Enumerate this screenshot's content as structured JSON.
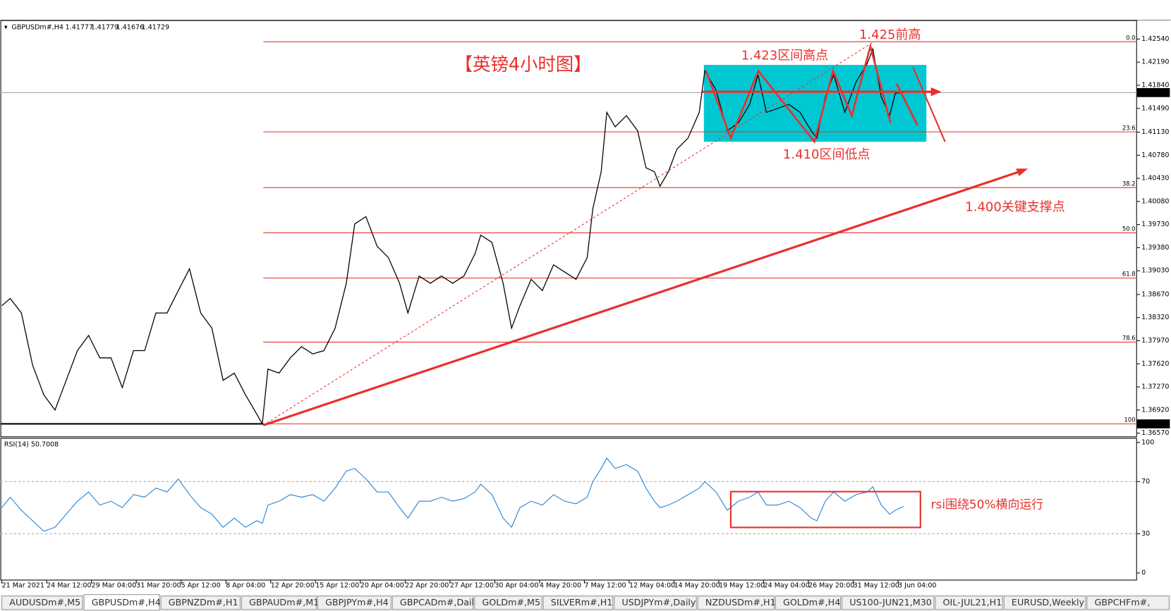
{
  "chart_data": {
    "type": "line",
    "title": "【英镑4小时图】",
    "symbol": "GBPUSDm#,H4",
    "ohlc_labels": [
      "1.41777",
      "1.41779",
      "1.41676",
      "1.41729"
    ],
    "x": [
      0,
      3,
      7,
      11,
      15,
      19,
      23,
      27,
      31,
      35,
      39,
      43,
      47,
      51,
      55,
      59,
      63,
      67,
      71,
      75,
      79,
      83,
      87,
      91,
      93,
      95,
      99,
      103,
      107,
      111,
      115,
      119,
      123,
      126,
      130,
      134,
      138,
      142,
      145,
      149,
      153,
      157,
      161,
      165,
      169,
      171,
      175,
      179,
      182,
      185,
      189,
      193,
      197,
      201,
      205,
      209,
      211,
      214,
      216,
      219,
      223,
      227,
      230,
      233,
      235,
      238,
      241,
      245,
      249,
      251,
      255,
      259,
      263,
      267,
      270,
      273,
      277,
      281,
      285,
      289,
      291,
      294,
      297,
      301,
      305,
      309,
      311,
      314,
      317,
      319,
      322
    ],
    "xlim": [
      -0.5,
      405.3
    ],
    "xticks": [
      {
        "value": 0,
        "label": "21 Mar 2021"
      },
      {
        "value": 16,
        "label": "24 Mar 12:00"
      },
      {
        "value": 32,
        "label": "29 Mar 04:00"
      },
      {
        "value": 48,
        "label": "31 Mar 20:00"
      },
      {
        "value": 64,
        "label": "5 Apr 12:00"
      },
      {
        "value": 80,
        "label": "8 Apr 04:00"
      },
      {
        "value": 96,
        "label": "12 Apr 20:00"
      },
      {
        "value": 112,
        "label": "15 Apr 12:00"
      },
      {
        "value": 128,
        "label": "20 Apr 04:00"
      },
      {
        "value": 144,
        "label": "22 Apr 20:00"
      },
      {
        "value": 160,
        "label": "27 Apr 12:00"
      },
      {
        "value": 176,
        "label": "30 Apr 04:00"
      },
      {
        "value": 192,
        "label": "4 May 20:00"
      },
      {
        "value": 208,
        "label": "7 May 12:00"
      },
      {
        "value": 224,
        "label": "12 May 04:00"
      },
      {
        "value": 240,
        "label": "14 May 20:00"
      },
      {
        "value": 256,
        "label": "19 May 12:00"
      },
      {
        "value": 272,
        "label": "24 May 04:00"
      },
      {
        "value": 288,
        "label": "26 May 20:00"
      },
      {
        "value": 304,
        "label": "31 May 12:00"
      },
      {
        "value": 320,
        "label": "3 Jun 04:00"
      }
    ],
    "ylim": [
      1.3652,
      1.4277
    ],
    "yticks": [
      {
        "value": 1.4254,
        "label": "1.42540"
      },
      {
        "value": 1.4219,
        "label": "1.42190"
      },
      {
        "value": 1.4184,
        "label": "1.41840"
      },
      {
        "value": 1.4149,
        "label": "1.41490"
      },
      {
        "value": 1.4113,
        "label": "1.41130"
      },
      {
        "value": 1.4078,
        "label": "1.40780"
      },
      {
        "value": 1.4043,
        "label": "1.40430"
      },
      {
        "value": 1.4008,
        "label": "1.40080"
      },
      {
        "value": 1.3973,
        "label": "1.39730"
      },
      {
        "value": 1.3938,
        "label": "1.39380"
      },
      {
        "value": 1.3903,
        "label": "1.39030"
      },
      {
        "value": 1.3867,
        "label": "1.38670"
      },
      {
        "value": 1.3832,
        "label": "1.38320"
      },
      {
        "value": 1.3797,
        "label": "1.37970"
      },
      {
        "value": 1.3762,
        "label": "1.37620"
      },
      {
        "value": 1.3727,
        "label": "1.37270"
      },
      {
        "value": 1.3692,
        "label": "1.36920"
      },
      {
        "value": 1.3657,
        "label": "1.36570"
      }
    ],
    "series": [
      {
        "name": "GBPUSDm#,H4",
        "color": "#000000",
        "values": [
          1.385,
          1.3861,
          1.3839,
          1.376,
          1.3715,
          1.3692,
          1.3737,
          1.3782,
          1.3805,
          1.3771,
          1.3771,
          1.3726,
          1.3782,
          1.3782,
          1.3839,
          1.3839,
          1.3873,
          1.3906,
          1.3839,
          1.3816,
          1.3737,
          1.3748,
          1.3715,
          1.3686,
          1.3671,
          1.3754,
          1.3748,
          1.3771,
          1.3788,
          1.3777,
          1.3782,
          1.3816,
          1.3884,
          1.3974,
          1.3985,
          1.394,
          1.3923,
          1.3884,
          1.3839,
          1.3895,
          1.3884,
          1.3895,
          1.3884,
          1.3895,
          1.3929,
          1.3957,
          1.3946,
          1.3884,
          1.3816,
          1.385,
          1.389,
          1.3873,
          1.3912,
          1.3901,
          1.389,
          1.3923,
          1.3997,
          1.4053,
          1.4143,
          1.4121,
          1.4138,
          1.4115,
          1.4059,
          1.4053,
          1.4031,
          1.4053,
          1.4087,
          1.4104,
          1.4143,
          1.4206,
          1.4177,
          1.4115,
          1.4127,
          1.4155,
          1.42,
          1.4143,
          1.4149,
          1.4155,
          1.4143,
          1.4115,
          1.4104,
          1.4166,
          1.42,
          1.4143,
          1.4189,
          1.4217,
          1.4239,
          1.4166,
          1.4138,
          1.4172,
          1.41729
        ]
      }
    ],
    "current_price": {
      "value": 1.41729,
      "label": "1.41729"
    },
    "low_price": {
      "value": 1.3671,
      "label": "1.36710"
    },
    "fib_levels": [
      {
        "value": 1.425,
        "label": "0.0"
      },
      {
        "value": 1.41134,
        "label": "23.6"
      },
      {
        "value": 1.4029,
        "label": "38.2"
      },
      {
        "value": 1.39605,
        "label": "50.0"
      },
      {
        "value": 1.3892,
        "label": "61.8"
      },
      {
        "value": 1.37949,
        "label": "78.6"
      },
      {
        "value": 1.3671,
        "label": "100"
      }
    ],
    "fib_color": "#e8302c",
    "annotations": [
      "1.425前高",
      "1.423区间高点",
      "1.410区间低点",
      "1.400关键支撑点",
      "rsi围绕50%横向运行"
    ],
    "rsi": {
      "label": "RSI(14) 50.7008",
      "color": "#1e7fd6",
      "ylim": [
        0,
        100
      ],
      "yticks": [
        100,
        70,
        30,
        0
      ],
      "values": [
        50,
        58,
        48,
        40,
        32,
        35,
        45,
        55,
        62,
        52,
        55,
        50,
        60,
        58,
        65,
        62,
        72,
        60,
        50,
        45,
        35,
        42,
        35,
        40,
        38,
        52,
        55,
        60,
        58,
        60,
        55,
        65,
        78,
        80,
        72,
        62,
        62,
        50,
        42,
        55,
        55,
        58,
        55,
        57,
        62,
        68,
        60,
        42,
        35,
        50,
        55,
        52,
        60,
        55,
        53,
        58,
        70,
        80,
        88,
        80,
        83,
        78,
        65,
        55,
        50,
        52,
        55,
        60,
        65,
        70,
        62,
        48,
        55,
        58,
        62,
        52,
        52,
        55,
        50,
        42,
        40,
        55,
        62,
        55,
        60,
        62,
        66,
        52,
        45,
        48,
        51
      ]
    }
  },
  "tabs": [
    "AUDUSDm#,M5",
    "GBPUSDm#,H4",
    "GBPNZDm#,H1",
    "GBPAUDm#,M1",
    "GBPJPYm#,H4",
    "GBPCADm#,Daily",
    "GOLDm#,M5",
    "SILVERm#,H1",
    "USDJPYm#,Daily",
    "NZDUSDm#,H1",
    "GOLDm#,H4",
    "US100-JUN21,M30",
    "OIL-JUL21,H1",
    "EURUSD,Weekly",
    "GBPCHFm#,"
  ]
}
